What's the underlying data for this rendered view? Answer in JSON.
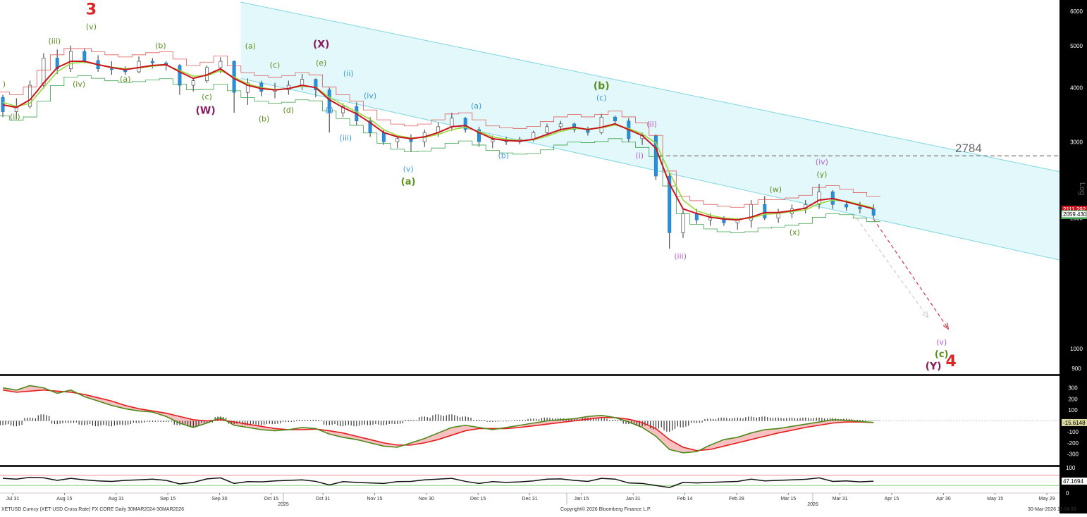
{
  "chart_data": {
    "type": "line",
    "title": "XETUSD Curncy (XET-USD Cross Rate) FX CORE Daily 30MAR2024-30MAR2026",
    "copyright": "Copyright© 2026 Bloomberg Finance L.P.",
    "timestamp": "30-Mar-2026 11:04:56",
    "scale": "Log",
    "price_axis": {
      "ticks": [
        "6000",
        "5000",
        "4000",
        "3000",
        "2000",
        "1000",
        "900"
      ],
      "tick_values": [
        6000,
        5000,
        4000,
        3000,
        2000,
        1000,
        900
      ],
      "ylim": [
        880,
        6300
      ]
    },
    "last_prices": {
      "upper": "2111.292",
      "lower": "2059.430"
    },
    "level_line": {
      "label": "2784",
      "value": 2784
    },
    "x_axis": {
      "labels": [
        "Jul 31",
        "Aug 15",
        "Aug 31",
        "Sep 15",
        "Sep 30",
        "Oct 15",
        "Oct 31",
        "Nov 15",
        "Nov 30",
        "Dec 15",
        "Dec 31",
        "Jan 15",
        "Jan 31",
        "Feb 14",
        "Feb 28",
        "Mar 15",
        "Mar 31",
        "Apr 15",
        "Apr 30",
        "May 15",
        "May 29"
      ],
      "years": [
        "2025",
        "2026"
      ]
    },
    "candles": [
      [
        3800,
        3850,
        3420,
        3520
      ],
      [
        3520,
        3780,
        3380,
        3620
      ],
      [
        3620,
        4150,
        3580,
        4050
      ],
      [
        4050,
        4800,
        3980,
        4680
      ],
      [
        4680,
        4900,
        4300,
        4420
      ],
      [
        4420,
        5000,
        4350,
        4850
      ],
      [
        4850,
        4920,
        4550,
        4620
      ],
      [
        4620,
        4750,
        4350,
        4420
      ],
      [
        4420,
        4600,
        4280,
        4400
      ],
      [
        4400,
        4480,
        4280,
        4350
      ],
      [
        4350,
        4720,
        4320,
        4600
      ],
      [
        4600,
        4680,
        4430,
        4560
      ],
      [
        4560,
        4600,
        4380,
        4500
      ],
      [
        4500,
        4530,
        3850,
        4050
      ],
      [
        4050,
        4200,
        3920,
        4150
      ],
      [
        4150,
        4500,
        4100,
        4450
      ],
      [
        4450,
        4700,
        4320,
        4600
      ],
      [
        4600,
        4620,
        3500,
        3900
      ],
      [
        3900,
        4200,
        3650,
        4100
      ],
      [
        4100,
        4150,
        3820,
        3920
      ],
      [
        3920,
        4100,
        3780,
        3950
      ],
      [
        3950,
        4150,
        3850,
        4050
      ],
      [
        4050,
        4300,
        3950,
        4180
      ],
      [
        4180,
        4200,
        3800,
        3950
      ],
      [
        3950,
        4000,
        3150,
        3500
      ],
      [
        3500,
        3680,
        3420,
        3620
      ],
      [
        3620,
        3700,
        3280,
        3350
      ],
      [
        3350,
        3420,
        3080,
        3150
      ],
      [
        3150,
        3200,
        2950,
        3000
      ],
      [
        3000,
        3100,
        2900,
        3050
      ],
      [
        3050,
        3120,
        2850,
        3000
      ],
      [
        3000,
        3200,
        2920,
        3150
      ],
      [
        3150,
        3320,
        3080,
        3250
      ],
      [
        3250,
        3500,
        3180,
        3400
      ],
      [
        3400,
        3420,
        3150,
        3200
      ],
      [
        3200,
        3250,
        2920,
        3000
      ],
      [
        3000,
        3100,
        2900,
        3030
      ],
      [
        3030,
        3080,
        2950,
        3000
      ],
      [
        3000,
        3080,
        2960,
        3040
      ],
      [
        3040,
        3180,
        3000,
        3150
      ],
      [
        3150,
        3300,
        3100,
        3250
      ],
      [
        3250,
        3350,
        3180,
        3300
      ],
      [
        3300,
        3320,
        3150,
        3200
      ],
      [
        3200,
        3250,
        3100,
        3150
      ],
      [
        3150,
        3480,
        3120,
        3420
      ],
      [
        3420,
        3450,
        3300,
        3350
      ],
      [
        3350,
        3400,
        3000,
        3050
      ],
      [
        3050,
        3150,
        2950,
        3100
      ],
      [
        3100,
        3120,
        2450,
        2500
      ],
      [
        2500,
        2550,
        1700,
        1850
      ],
      [
        1850,
        2100,
        1800,
        2050
      ],
      [
        2050,
        2100,
        1940,
        1980
      ],
      [
        1980,
        2050,
        1920,
        2000
      ],
      [
        2000,
        2020,
        1920,
        1950
      ],
      [
        1950,
        2000,
        1880,
        1980
      ],
      [
        1980,
        2200,
        1900,
        2150
      ],
      [
        2150,
        2250,
        1980,
        2000
      ],
      [
        2000,
        2100,
        1950,
        2050
      ],
      [
        2050,
        2150,
        2000,
        2100
      ],
      [
        2100,
        2200,
        2050,
        2150
      ],
      [
        2150,
        2400,
        2100,
        2300
      ],
      [
        2300,
        2320,
        2100,
        2150
      ],
      [
        2150,
        2200,
        2080,
        2120
      ],
      [
        2120,
        2180,
        2050,
        2100
      ],
      [
        2100,
        2150,
        2000,
        2030
      ]
    ],
    "moving_averages": {
      "fast_red": [
        3650,
        3600,
        3750,
        4100,
        4450,
        4600,
        4600,
        4520,
        4450,
        4400,
        4450,
        4500,
        4520,
        4350,
        4200,
        4280,
        4420,
        4200,
        4050,
        3980,
        3950,
        3980,
        4050,
        4000,
        3750,
        3600,
        3480,
        3320,
        3150,
        3080,
        3050,
        3080,
        3150,
        3250,
        3270,
        3150,
        3050,
        3020,
        3010,
        3040,
        3120,
        3200,
        3240,
        3200,
        3240,
        3300,
        3200,
        3100,
        2900,
        2400,
        2100,
        2050,
        2010,
        1990,
        1980,
        2010,
        2060,
        2060,
        2080,
        2110,
        2200,
        2220,
        2180,
        2140,
        2100
      ],
      "slow_green": [
        3700,
        3620,
        3680,
        4000,
        4350,
        4550,
        4580,
        4520,
        4460,
        4420,
        4440,
        4480,
        4510,
        4380,
        4250,
        4260,
        4380,
        4230,
        4080,
        4000,
        3960,
        3980,
        4030,
        4010,
        3800,
        3650,
        3520,
        3380,
        3200,
        3100,
        3060,
        3070,
        3120,
        3200,
        3240,
        3170,
        3080,
        3040,
        3020,
        3030,
        3090,
        3170,
        3220,
        3210,
        3230,
        3280,
        3220,
        3130,
        2980,
        2550,
        2200,
        2080,
        2030,
        2000,
        1990,
        2000,
        2040,
        2050,
        2070,
        2090,
        2160,
        2200,
        2190,
        2150,
        2110
      ]
    },
    "channel": {
      "upper": {
        "from": {
          "i": 17.5,
          "v": 6300
        },
        "to": {
          "i": 107,
          "v": 1650
        }
      },
      "lower": {
        "from": {
          "i": 17.5,
          "v": 4200
        },
        "to": {
          "i": 107,
          "v": 1000
        }
      }
    },
    "projection_arrows": [
      {
        "color": "#d8324a",
        "from": {
          "i": 64,
          "v": 1990
        },
        "to": {
          "i": 69.5,
          "v": 1110
        }
      },
      {
        "color": "#cccccc",
        "from": {
          "i": 62.5,
          "v": 2050
        },
        "to": {
          "i": 68,
          "v": 1180
        }
      }
    ],
    "wave_labels": [
      {
        "text": "3",
        "color": "#dc2626",
        "size": 22,
        "i": 6.5,
        "v": 5900
      },
      {
        "text": "(v)",
        "color": "#5b8f1e",
        "size": 11,
        "i": 6.5,
        "v": 5450
      },
      {
        "text": "(iii)",
        "color": "#5b8f1e",
        "size": 11,
        "i": 3.8,
        "v": 5050
      },
      {
        "text": ")",
        "color": "#5b8f1e",
        "size": 11,
        "i": 0.1,
        "v": 4020
      },
      {
        "text": "(ii)",
        "color": "#5b8f1e",
        "size": 11,
        "i": 0.9,
        "v": 3380
      },
      {
        "text": "(iv)",
        "color": "#5b8f1e",
        "size": 11,
        "i": 5.6,
        "v": 4020
      },
      {
        "text": "(a)",
        "color": "#5b8f1e",
        "size": 11,
        "i": 9,
        "v": 4130
      },
      {
        "text": "(b)",
        "color": "#5b8f1e",
        "size": 11,
        "i": 11.6,
        "v": 4930
      },
      {
        "text": "(c)",
        "color": "#5b8f1e",
        "size": 11,
        "i": 15,
        "v": 3760
      },
      {
        "text": "(W)",
        "color": "#8b1a5c",
        "size": 14,
        "i": 14.9,
        "v": 3480
      },
      {
        "text": "(a)",
        "color": "#5b8f1e",
        "size": 11,
        "i": 18.2,
        "v": 4920
      },
      {
        "text": "(c)",
        "color": "#5b8f1e",
        "size": 11,
        "i": 20,
        "v": 4450
      },
      {
        "text": "(b)",
        "color": "#5b8f1e",
        "size": 11,
        "i": 19.2,
        "v": 3340
      },
      {
        "text": "(d)",
        "color": "#5b8f1e",
        "size": 11,
        "i": 21,
        "v": 3500
      },
      {
        "text": "(X)",
        "color": "#8b1a5c",
        "size": 14,
        "i": 23.4,
        "v": 4950
      },
      {
        "text": "(e)",
        "color": "#5b8f1e",
        "size": 11,
        "i": 23.4,
        "v": 4500
      },
      {
        "text": "(ii)",
        "color": "#3b9ad9",
        "size": 11,
        "i": 25.4,
        "v": 4250
      },
      {
        "text": "(i)",
        "color": "#3b9ad9",
        "size": 11,
        "i": 24,
        "v": 3500
      },
      {
        "text": "(iii)",
        "color": "#3b9ad9",
        "size": 11,
        "i": 25.2,
        "v": 3020
      },
      {
        "text": "(iv)",
        "color": "#3b9ad9",
        "size": 11,
        "i": 27,
        "v": 3780
      },
      {
        "text": "(v)",
        "color": "#3b9ad9",
        "size": 11,
        "i": 29.8,
        "v": 2560
      },
      {
        "text": "(a)",
        "color": "#5b8f1e",
        "size": 13,
        "i": 29.8,
        "v": 2390
      },
      {
        "text": "(a)",
        "color": "#3b9ad9",
        "size": 11,
        "i": 34.8,
        "v": 3580
      },
      {
        "text": "(b)",
        "color": "#3b9ad9",
        "size": 11,
        "i": 36.8,
        "v": 2750
      },
      {
        "text": "(b)",
        "color": "#5b8f1e",
        "size": 14,
        "i": 44,
        "v": 3970
      },
      {
        "text": "(c)",
        "color": "#3b9ad9",
        "size": 11,
        "i": 44,
        "v": 3740
      },
      {
        "text": "(ii)",
        "color": "#b560c8",
        "size": 11,
        "i": 47.7,
        "v": 3250
      },
      {
        "text": "(i)",
        "color": "#b560c8",
        "size": 11,
        "i": 46.8,
        "v": 2750
      },
      {
        "text": "(iii)",
        "color": "#b560c8",
        "size": 11,
        "i": 49.8,
        "v": 1610
      },
      {
        "text": "(w)",
        "color": "#5b8f1e",
        "size": 11,
        "i": 56.8,
        "v": 2300
      },
      {
        "text": "(x)",
        "color": "#5b8f1e",
        "size": 11,
        "i": 58.2,
        "v": 1830
      },
      {
        "text": "(iv)",
        "color": "#b560c8",
        "size": 11,
        "i": 60.2,
        "v": 2660
      },
      {
        "text": "(y)",
        "color": "#5b8f1e",
        "size": 11,
        "i": 60.2,
        "v": 2490
      },
      {
        "text": "(v)",
        "color": "#b560c8",
        "size": 11,
        "i": 69,
        "v": 1020
      },
      {
        "text": "(c)",
        "color": "#5b8f1e",
        "size": 13,
        "i": 69,
        "v": 955
      },
      {
        "text": "(Y)",
        "color": "#8b1a5c",
        "size": 14,
        "i": 68.4,
        "v": 895
      },
      {
        "text": "4",
        "color": "#dc2626",
        "size": 22,
        "i": 69.7,
        "v": 910
      }
    ],
    "macd": {
      "ticks": [
        "300",
        "200",
        "100",
        "-100",
        "-200",
        "-300"
      ],
      "tick_values": [
        300,
        200,
        100,
        -100,
        -200,
        -300
      ],
      "ylim": [
        -400,
        400
      ],
      "last_value": "-15.6148",
      "macd_line": [
        300,
        280,
        320,
        300,
        250,
        280,
        220,
        180,
        140,
        110,
        90,
        80,
        40,
        -20,
        -60,
        -20,
        30,
        -40,
        -60,
        -80,
        -90,
        -80,
        -60,
        -70,
        -120,
        -150,
        -170,
        -200,
        -230,
        -240,
        -200,
        -160,
        -110,
        -60,
        -40,
        -60,
        -80,
        -60,
        -40,
        -20,
        0,
        10,
        20,
        40,
        50,
        30,
        -10,
        -60,
        -140,
        -260,
        -290,
        -280,
        -220,
        -170,
        -150,
        -110,
        -80,
        -70,
        -50,
        -30,
        -10,
        10,
        5,
        -5,
        -15
      ],
      "signal_line": [
        280,
        260,
        270,
        280,
        270,
        260,
        240,
        210,
        180,
        140,
        110,
        90,
        70,
        40,
        10,
        0,
        10,
        -10,
        -30,
        -50,
        -70,
        -80,
        -80,
        -75,
        -90,
        -110,
        -140,
        -170,
        -200,
        -220,
        -220,
        -200,
        -170,
        -130,
        -90,
        -70,
        -70,
        -70,
        -60,
        -45,
        -30,
        -15,
        0,
        15,
        30,
        30,
        15,
        -15,
        -70,
        -170,
        -240,
        -270,
        -260,
        -230,
        -200,
        -170,
        -140,
        -110,
        -85,
        -60,
        -40,
        -20,
        -10,
        -10,
        -15
      ],
      "histogram": [
        -40,
        -50,
        30,
        60,
        -30,
        -20,
        -40,
        -50,
        -50,
        -40,
        -20,
        -10,
        -10,
        -40,
        -60,
        -20,
        40,
        -30,
        -40,
        -40,
        -30,
        -10,
        10,
        10,
        -40,
        -50,
        -50,
        -40,
        -40,
        -30,
        10,
        40,
        60,
        60,
        40,
        10,
        -10,
        -5,
        10,
        20,
        30,
        25,
        20,
        30,
        25,
        10,
        -30,
        -50,
        -80,
        -100,
        -60,
        -20,
        20,
        30,
        30,
        40,
        40,
        30,
        30,
        30,
        30,
        25,
        20,
        10,
        5
      ]
    },
    "rsi": {
      "ticks": [
        "100",
        "0"
      ],
      "tick_values": [
        100,
        0
      ],
      "ylim": [
        0,
        100
      ],
      "bands": [
        70,
        30
      ],
      "last_value": "47.1694",
      "values": [
        58,
        55,
        62,
        60,
        50,
        58,
        52,
        48,
        46,
        50,
        52,
        55,
        50,
        36,
        42,
        56,
        60,
        38,
        45,
        44,
        48,
        50,
        52,
        46,
        32,
        45,
        42,
        40,
        38,
        45,
        46,
        52,
        55,
        58,
        46,
        38,
        45,
        42,
        44,
        48,
        55,
        56,
        50,
        46,
        58,
        55,
        40,
        38,
        30,
        22,
        42,
        40,
        42,
        44,
        46,
        55,
        48,
        50,
        52,
        54,
        60,
        46,
        48,
        44,
        47
      ]
    }
  }
}
